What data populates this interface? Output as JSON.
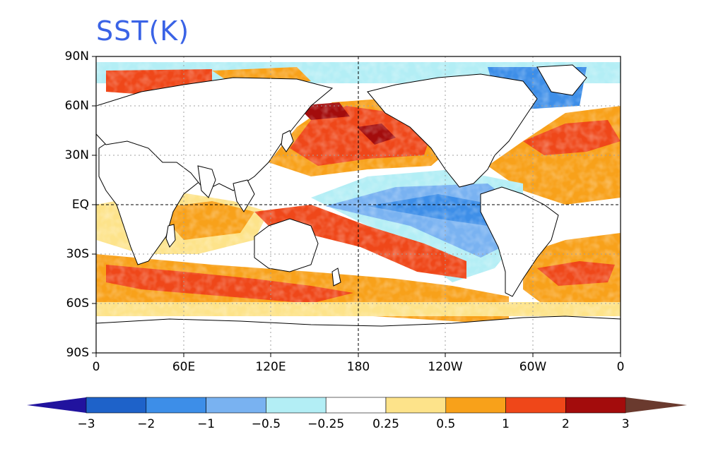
{
  "title": "SST(K)",
  "lat_labels": [
    "90N",
    "60N",
    "30N",
    "EQ",
    "30S",
    "60S",
    "90S"
  ],
  "lon_labels": [
    "0",
    "60E",
    "120E",
    "180",
    "120W",
    "60W",
    "0"
  ],
  "colorbar": {
    "labels": [
      "−3",
      "−2",
      "−1",
      "−0.5",
      "−0.25",
      "0.25",
      "0.5",
      "1",
      "2",
      "3"
    ],
    "colors": [
      "#21139e",
      "#1e62c9",
      "#3d8ee8",
      "#79b2f1",
      "#b3eef5",
      "#ffffff",
      "#fde38a",
      "#f8a11a",
      "#ef4719",
      "#a30c0c",
      "#6a3a2e"
    ]
  },
  "colors": {
    "land": "#ffffff",
    "coast": "#000000",
    "title": "#3a63e6"
  }
}
